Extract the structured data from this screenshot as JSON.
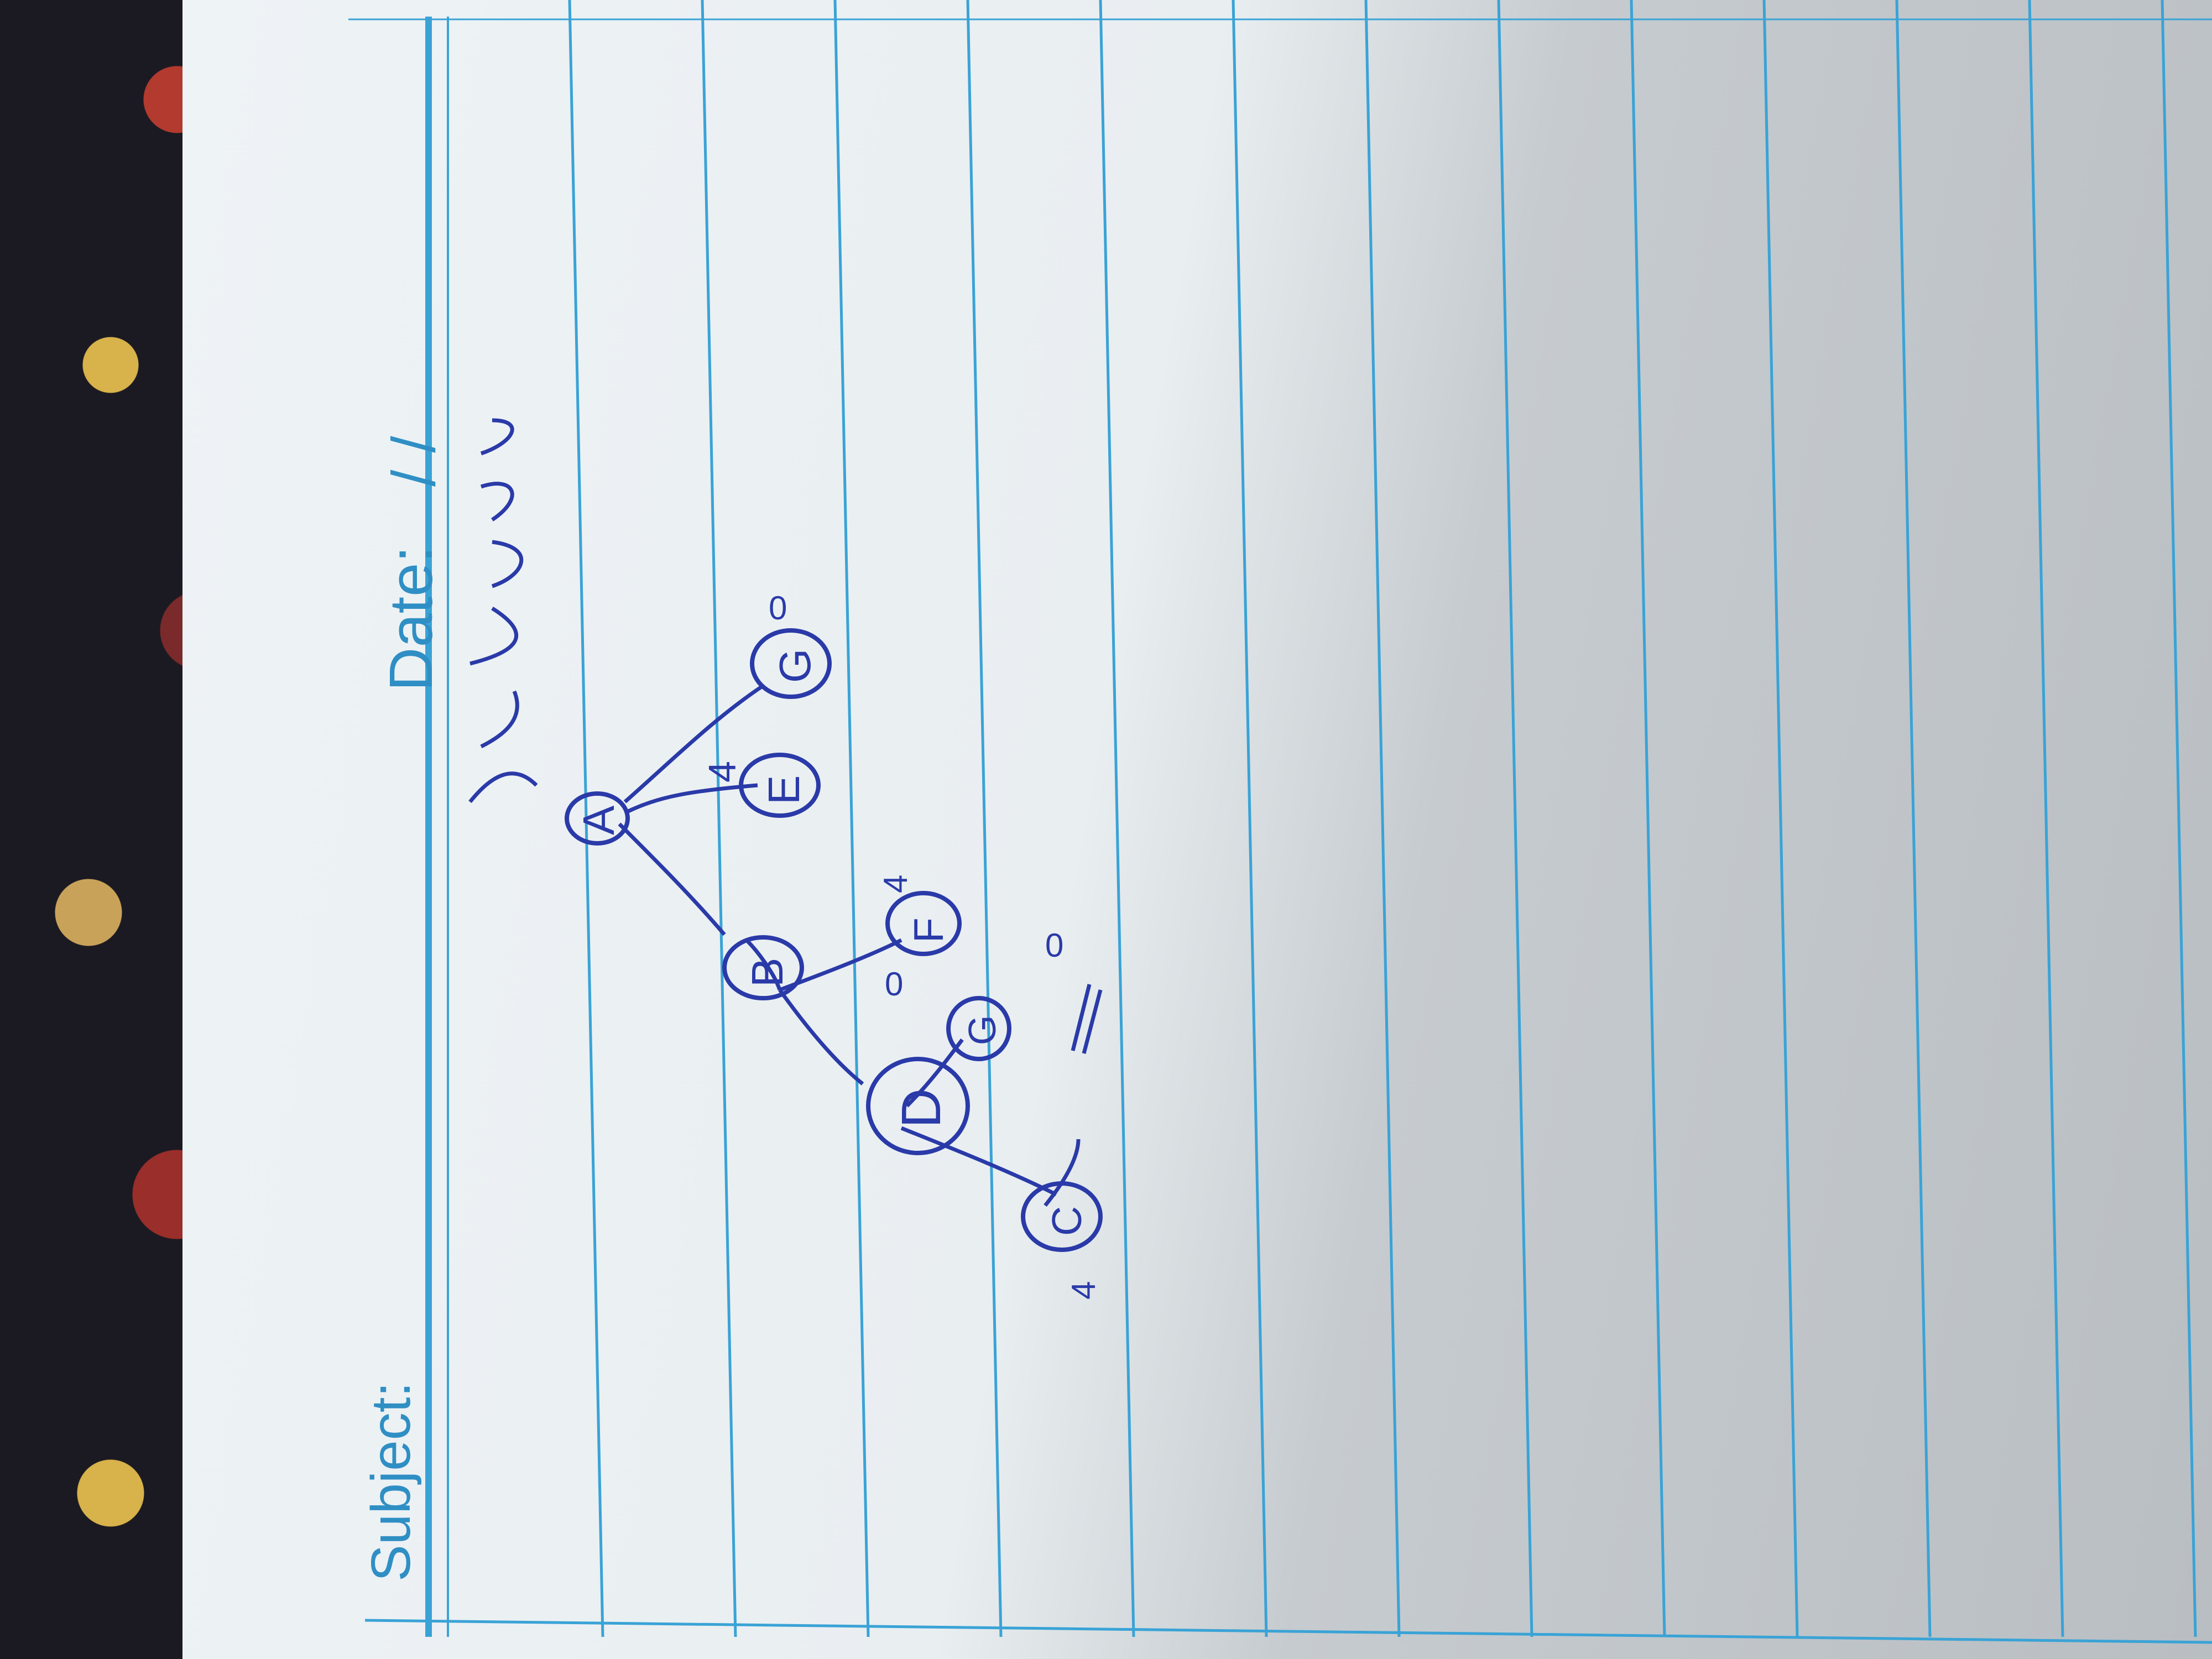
{
  "header": {
    "subject_label": "Subject:",
    "date_label": "Date:",
    "date_slashes": "/ /"
  },
  "colors": {
    "ruling": "#3aa3d6",
    "ink": "#2a3aa8"
  },
  "diagram": {
    "nodes": [
      {
        "id": "A",
        "label": "A",
        "side": "4"
      },
      {
        "id": "B",
        "label": "B",
        "side": "0"
      },
      {
        "id": "E",
        "label": "E",
        "side": ""
      },
      {
        "id": "G1",
        "label": "G",
        "side": "0"
      },
      {
        "id": "F",
        "label": "F",
        "side": "4"
      },
      {
        "id": "D",
        "label": "D",
        "side": ""
      },
      {
        "id": "G2",
        "label": "G",
        "side": "0"
      },
      {
        "id": "C",
        "label": "C",
        "side": "4"
      }
    ]
  }
}
